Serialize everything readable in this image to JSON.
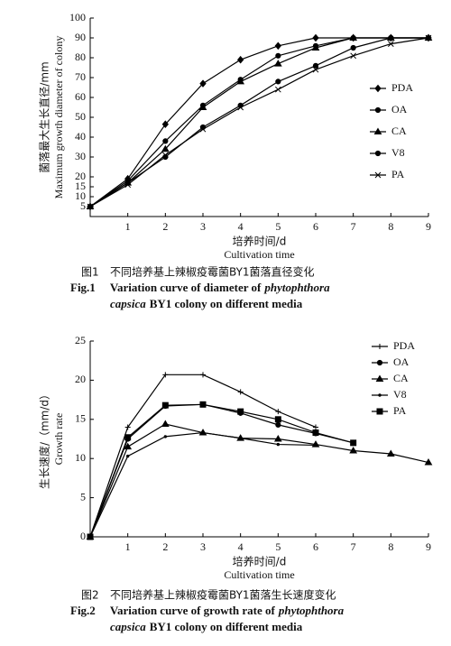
{
  "chart_data": [
    {
      "type": "line",
      "y_label_cn": "菌落最大生长直径/mm",
      "y_label_en": "Maximum growth diameter of colony",
      "x_label_cn": "培养时间/d",
      "x_label_en": "Cultivation time",
      "caption_cn": [
        "图1",
        "不同培养基上辣椒疫霉菌BY1菌落直径变化"
      ],
      "caption_en": [
        "Fig.1",
        "Variation curve of diameter of",
        "phytophthora",
        "capsica",
        "BY1 colony on different media"
      ],
      "x": [
        0,
        1,
        2,
        3,
        4,
        5,
        6,
        7,
        8,
        9
      ],
      "xlim": [
        0,
        9
      ],
      "xticks": [
        1,
        2,
        3,
        4,
        5,
        6,
        7,
        8,
        9
      ],
      "ylim": [
        0,
        100
      ],
      "yticks": [
        5,
        10,
        15,
        20,
        30,
        40,
        50,
        60,
        70,
        80,
        90,
        100
      ],
      "legend": "right",
      "series": [
        {
          "name": "PDA",
          "color": "#000000",
          "marker": "diamond",
          "values": [
            5,
            19,
            46.5,
            67,
            79,
            86,
            90,
            90,
            90,
            90
          ]
        },
        {
          "name": "OA",
          "color": "#000000",
          "marker": "circle",
          "values": [
            5,
            18,
            38,
            56,
            69,
            81,
            86,
            90,
            90,
            90
          ]
        },
        {
          "name": "CA",
          "color": "#000000",
          "marker": "triangle",
          "values": [
            5,
            17,
            34,
            55,
            68,
            77,
            85,
            90,
            90,
            90
          ]
        },
        {
          "name": "V8",
          "color": "#000000",
          "marker": "circle",
          "values": [
            5,
            17,
            30,
            45,
            56,
            68,
            76,
            85,
            90,
            90
          ]
        },
        {
          "name": "PA",
          "color": "#000000",
          "marker": "cross",
          "values": [
            5,
            16,
            31,
            44,
            55,
            64,
            74,
            81,
            87,
            90
          ]
        }
      ]
    },
    {
      "type": "line",
      "y_label_cn": "生长速度/（mm/d）",
      "y_label_en": "Growth rate",
      "x_label_cn": "培养时间/d",
      "x_label_en": "Cultivation time",
      "caption_cn": [
        "图2",
        "不同培养基上辣椒疫霉菌BY1菌落生长速度变化"
      ],
      "caption_en": [
        "Fig.2",
        "Variation curve of growth rate of",
        "phytophthora",
        "capsica",
        "BY1 colony on different media"
      ],
      "x": [
        0,
        1,
        2,
        3,
        4,
        5,
        6,
        7,
        8,
        9
      ],
      "xlim": [
        0,
        9
      ],
      "xticks": [
        1,
        2,
        3,
        4,
        5,
        6,
        7,
        8,
        9
      ],
      "ylim": [
        0,
        25
      ],
      "yticks": [
        0,
        5,
        10,
        15,
        20,
        25
      ],
      "legend": "right",
      "series": [
        {
          "name": "PDA",
          "color": "#000000",
          "marker": "plus",
          "values": [
            0,
            14,
            20.7,
            20.7,
            18.5,
            16,
            14,
            null,
            null,
            null
          ]
        },
        {
          "name": "OA",
          "color": "#000000",
          "marker": "circle",
          "values": [
            0,
            12.5,
            16.7,
            16.9,
            15.8,
            14.3,
            13.2,
            12,
            null,
            null
          ]
        },
        {
          "name": "CA",
          "color": "#000000",
          "marker": "triangle",
          "values": [
            0,
            11.5,
            14.4,
            13.3,
            12.6,
            12.5,
            11.8,
            11,
            10.6,
            9.5
          ]
        },
        {
          "name": "V8",
          "color": "#000000",
          "marker": "none",
          "values": [
            0,
            10.3,
            12.8,
            13.3,
            12.6,
            11.8,
            11.7,
            null,
            null,
            null
          ]
        },
        {
          "name": "PA",
          "color": "#000000",
          "marker": "square",
          "values": [
            0,
            12.7,
            16.8,
            16.9,
            16.0,
            15.0,
            13.3,
            12.0,
            null,
            null
          ]
        }
      ]
    }
  ]
}
